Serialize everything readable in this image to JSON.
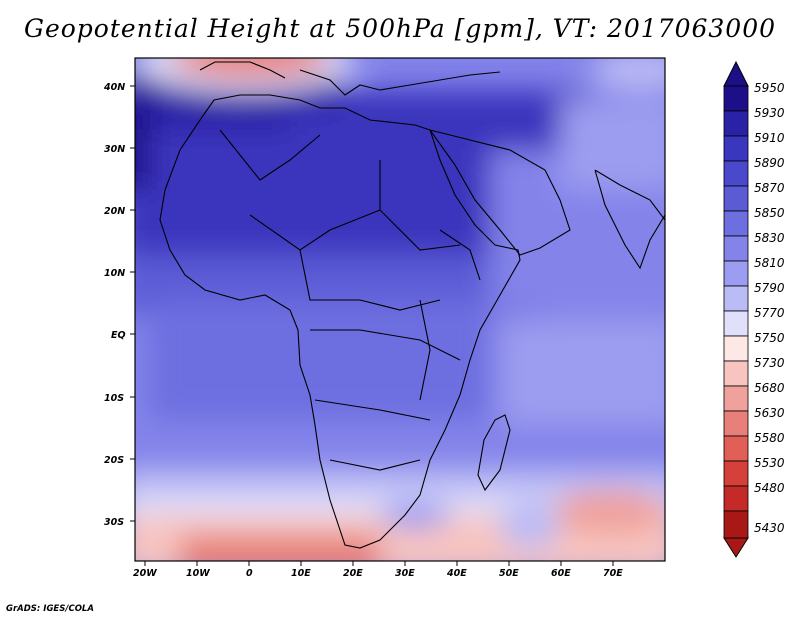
{
  "title": "Geopotential Height at 500hPa [gpm], VT: 2017063000",
  "credit": "GrADS: IGES/COLA",
  "y_axis_labels": [
    "40N",
    "30N",
    "20N",
    "10N",
    "EQ",
    "10S",
    "20S",
    "30S"
  ],
  "x_axis_labels": [
    "20W",
    "10W",
    "0",
    "10E",
    "20E",
    "30E",
    "40E",
    "50E",
    "60E",
    "70E"
  ],
  "colorbar": {
    "levels": [
      "5950",
      "5930",
      "5910",
      "5890",
      "5870",
      "5850",
      "5830",
      "5810",
      "5790",
      "5770",
      "5750",
      "5730",
      "5680",
      "5630",
      "5580",
      "5530",
      "5480",
      "5430"
    ],
    "colors": [
      "#1d0f87",
      "#2a22a6",
      "#3a36bd",
      "#4a48cc",
      "#5b5bd6",
      "#6d6ee0",
      "#8383ea",
      "#9c9cf0",
      "#bbbbf5",
      "#e0e0fb",
      "#fde8e6",
      "#f7c4c0",
      "#f0a19b",
      "#e88079",
      "#e05f57",
      "#d6403a",
      "#c42a27",
      "#a81817"
    ]
  },
  "legend_arrows": {
    "top_color": "#1d0f87",
    "bottom_color": "#a81817"
  }
}
